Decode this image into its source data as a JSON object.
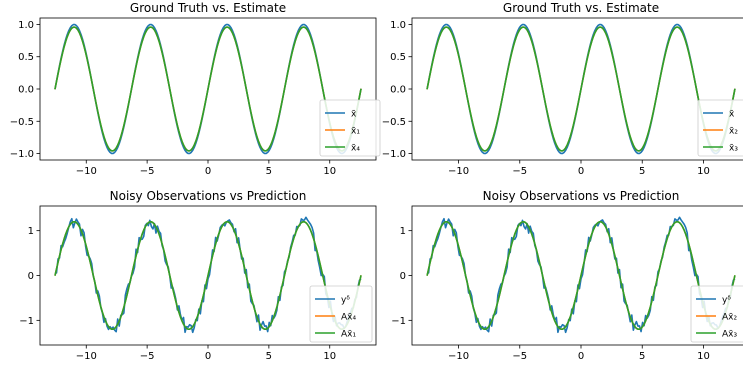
{
  "chart_data": [
    {
      "type": "line",
      "title": "Ground Truth vs. Estimate",
      "xlabel": "",
      "ylabel": "",
      "xlim": [
        -13.8,
        13.8
      ],
      "ylim": [
        -1.1,
        1.1
      ],
      "xticks": [
        -10,
        -5,
        0,
        5,
        10
      ],
      "xtick_labels": [
        "−10",
        "−5",
        "0",
        "5",
        "10"
      ],
      "yticks": [
        1.0,
        0.5,
        0.0,
        -0.5,
        -1.0
      ],
      "ytick_labels": [
        "1.0",
        "0.5",
        "0.0",
        "−0.5",
        "−1.0"
      ],
      "legend_position": "lower-right",
      "grid": false,
      "x_range": [
        -12.57,
        12.57
      ],
      "series": [
        {
          "name": "x̄",
          "function": "sin(x)",
          "color": "#1f77b4"
        },
        {
          "name": "x̄₁",
          "function": "0.96·sin(x) (hidden under x̄₄)",
          "color": "#ff7f0e"
        },
        {
          "name": "x̄₄",
          "function": "0.96·sin(x)",
          "color": "#2ca02c"
        }
      ]
    },
    {
      "type": "line",
      "title": "Ground Truth vs. Estimate",
      "xlabel": "",
      "ylabel": "",
      "xlim": [
        -13.8,
        13.8
      ],
      "ylim": [
        -1.1,
        1.1
      ],
      "xticks": [
        -10,
        -5,
        0,
        5,
        10
      ],
      "xtick_labels": [
        "−10",
        "−5",
        "0",
        "5",
        "10"
      ],
      "yticks": [
        1.0,
        0.5,
        0.0,
        -0.5,
        -1.0
      ],
      "ytick_labels": [
        "1.0",
        "0.5",
        "0.0",
        "−0.5",
        "−1.0"
      ],
      "legend_position": "lower-right",
      "grid": false,
      "x_range": [
        -12.57,
        12.57
      ],
      "series": [
        {
          "name": "x̄",
          "function": "sin(x)",
          "color": "#1f77b4"
        },
        {
          "name": "x̄₂",
          "function": "0.96·sin(x) (hidden under x̄₃)",
          "color": "#ff7f0e"
        },
        {
          "name": "x̄₃",
          "function": "0.96·sin(x)",
          "color": "#2ca02c"
        }
      ]
    },
    {
      "type": "line",
      "title": "Noisy Observations vs Prediction",
      "xlabel": "",
      "ylabel": "",
      "xlim": [
        -13.8,
        13.8
      ],
      "ylim": [
        -1.55,
        1.55
      ],
      "xticks": [
        -10,
        -5,
        0,
        5,
        10
      ],
      "xtick_labels": [
        "−10",
        "−5",
        "0",
        "5",
        "10"
      ],
      "yticks": [
        1,
        0,
        -1
      ],
      "ytick_labels": [
        "1",
        "0",
        "−1"
      ],
      "legend_position": "lower-right",
      "grid": false,
      "x_range": [
        -12.57,
        12.57
      ],
      "series": [
        {
          "name": "yᵟ",
          "function": "1.2·sin(x) + noise",
          "color": "#1f77b4"
        },
        {
          "name": "Ax̄₄",
          "function": "1.2·sin(x) (hidden under Ax̄₁)",
          "color": "#ff7f0e"
        },
        {
          "name": "Ax̄₁",
          "function": "1.2·sin(x)",
          "color": "#2ca02c"
        }
      ]
    },
    {
      "type": "line",
      "title": "Noisy Observations vs Prediction",
      "xlabel": "",
      "ylabel": "",
      "xlim": [
        -13.8,
        13.8
      ],
      "ylim": [
        -1.55,
        1.55
      ],
      "xticks": [
        -10,
        -5,
        0,
        5,
        10
      ],
      "xtick_labels": [
        "−10",
        "−5",
        "0",
        "5",
        "10"
      ],
      "yticks": [
        1,
        0,
        -1
      ],
      "ytick_labels": [
        "1",
        "0",
        "−1"
      ],
      "legend_position": "lower-right",
      "grid": false,
      "x_range": [
        -12.57,
        12.57
      ],
      "series": [
        {
          "name": "yᵟ",
          "function": "1.2·sin(x) + noise",
          "color": "#1f77b4"
        },
        {
          "name": "Ax̄₂",
          "function": "1.2·sin(x) (hidden under Ax̄₃)",
          "color": "#ff7f0e"
        },
        {
          "name": "Ax̄₃",
          "function": "1.2·sin(x)",
          "color": "#2ca02c"
        }
      ]
    }
  ]
}
